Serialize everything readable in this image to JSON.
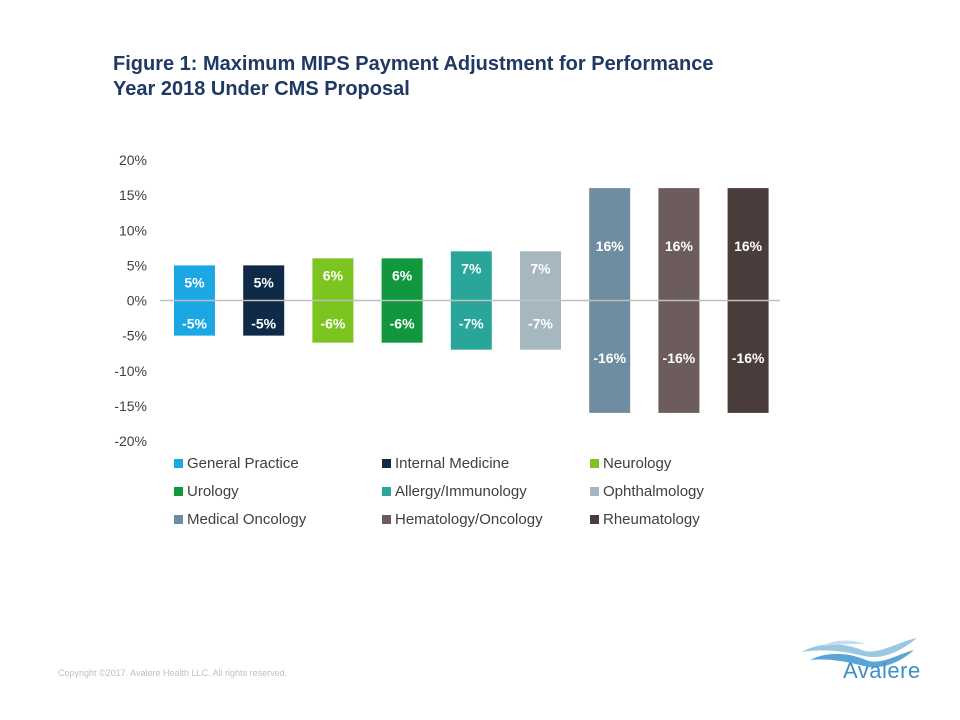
{
  "title_line1": "Figure 1: Maximum MIPS Payment Adjustment for Performance",
  "title_line2": "Year 2018 Under CMS Proposal",
  "copyright": "Copyright ©2017. Avalere Health LLC. All rights reserved.",
  "logo_text": "Avalere",
  "chart_data": {
    "type": "bar",
    "categories": [
      "General Practice",
      "Internal Medicine",
      "Neurology",
      "Urology",
      "Allergy/Immunology",
      "Ophthalmology",
      "Medical Oncology",
      "Hematology/Oncology",
      "Rheumatology"
    ],
    "series": [
      {
        "values": [
          5,
          5,
          6,
          6,
          7,
          7,
          16,
          16,
          16
        ]
      },
      {
        "values": [
          -5,
          -5,
          -6,
          -6,
          -7,
          -7,
          -16,
          -16,
          -16
        ]
      }
    ],
    "colors": [
      "#1ba7e4",
      "#0e2a47",
      "#7cc520",
      "#11983f",
      "#2aa59a",
      "#a7b7c0",
      "#6f8da0",
      "#6c5c5c",
      "#4b3c3c"
    ],
    "positive_labels": [
      "5%",
      "5%",
      "6%",
      "6%",
      "7%",
      "7%",
      "16%",
      "16%",
      "16%"
    ],
    "negative_labels": [
      "-5%",
      "-5%",
      "-6%",
      "-6%",
      "-7%",
      "-7%",
      "-16%",
      "-16%",
      "-16%"
    ],
    "y_ticks": [
      "20%",
      "15%",
      "10%",
      "5%",
      "0%",
      "-5%",
      "-10%",
      "-15%",
      "-20%"
    ],
    "y_tick_values": [
      20,
      15,
      10,
      5,
      0,
      -5,
      -10,
      -15,
      -20
    ],
    "ylim": [
      -20,
      20
    ],
    "legend": [
      "General Practice",
      "Internal Medicine",
      "Neurology",
      "Urology",
      "Allergy/Immunology",
      "Ophthalmology",
      "Medical Oncology",
      "Hematology/Oncology",
      "Rheumatology"
    ],
    "legend_placement": "bottom",
    "grid": false
  }
}
